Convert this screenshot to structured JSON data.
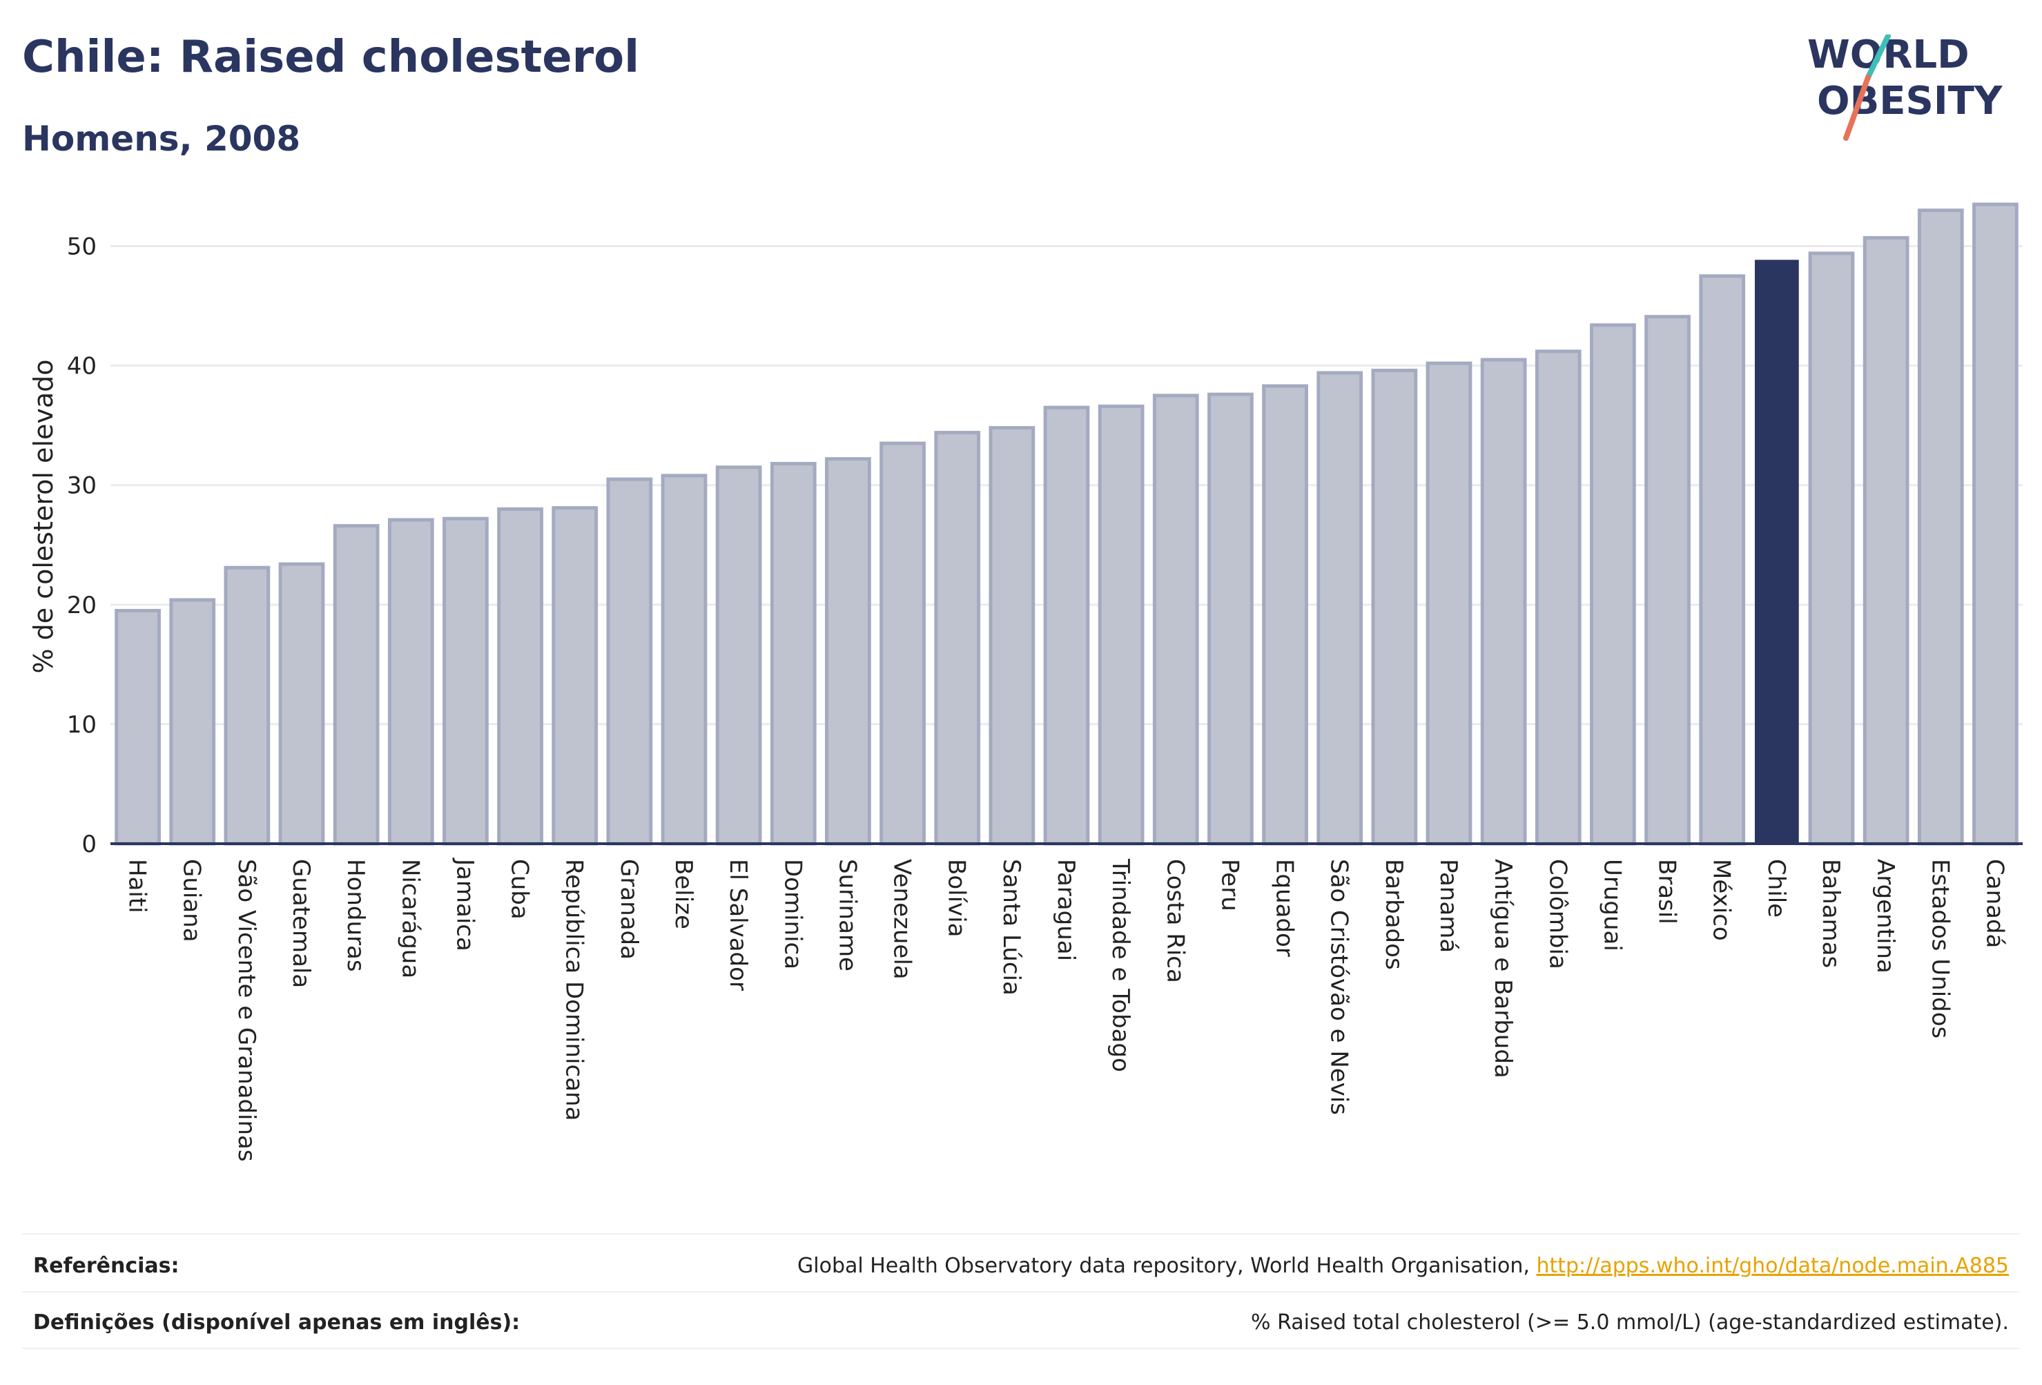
{
  "header": {
    "title": "Chile: Raised cholesterol",
    "subtitle": "Homens, 2008"
  },
  "logo": {
    "line1": "WORLD",
    "line2": "OBESITY",
    "accent_colors": [
      "#3dbfb8",
      "#e8715a"
    ]
  },
  "colors": {
    "bar_default": "#bfc3d0",
    "bar_default_border": "#a4aac0",
    "bar_highlight": "#2a3560",
    "text": "#2a3560",
    "grid": "#e8eaf0",
    "link": "#e8a200"
  },
  "chart_data": {
    "type": "bar",
    "title": "Chile: Raised cholesterol",
    "subtitle": "Homens, 2008",
    "ylabel": "% de colesterol elevado",
    "xlabel": "",
    "ylim": [
      0,
      55
    ],
    "yticks": [
      0,
      10,
      20,
      30,
      40,
      50
    ],
    "grid": true,
    "highlight": "Chile",
    "categories": [
      "Haiti",
      "Guiana",
      "São Vicente e Granadinas",
      "Guatemala",
      "Honduras",
      "Nicarágua",
      "Jamaica",
      "Cuba",
      "República Dominicana",
      "Granada",
      "Belize",
      "El Salvador",
      "Dominica",
      "Suriname",
      "Venezuela",
      "Bolívia",
      "Santa Lúcia",
      "Paraguai",
      "Trindade e Tobago",
      "Costa Rica",
      "Peru",
      "Equador",
      "São Cristóvão e Nevis",
      "Barbados",
      "Panamá",
      "Antígua e Barbuda",
      "Colômbia",
      "Uruguai",
      "Brasil",
      "México",
      "Chile",
      "Bahamas",
      "Argentina",
      "Estados Unidos",
      "Canadá"
    ],
    "values": [
      19.5,
      20.4,
      23.1,
      23.4,
      26.6,
      27.1,
      27.2,
      28.0,
      28.1,
      30.5,
      30.8,
      31.5,
      31.8,
      32.2,
      33.5,
      34.4,
      34.8,
      36.5,
      36.6,
      37.5,
      37.6,
      38.3,
      39.4,
      39.6,
      40.2,
      40.5,
      41.2,
      43.4,
      44.1,
      47.5,
      48.8,
      49.4,
      50.7,
      53.0,
      53.5
    ]
  },
  "footer": {
    "references_label": "Referências:",
    "references_text": "Global Health Observatory data repository, World Health Organisation, ",
    "references_link": "http://apps.who.int/gho/data/node.main.A885",
    "definitions_label": "Definições (disponível apenas em inglês):",
    "definitions_text": "% Raised total cholesterol (>= 5.0 mmol/L) (age-standardized estimate)."
  }
}
